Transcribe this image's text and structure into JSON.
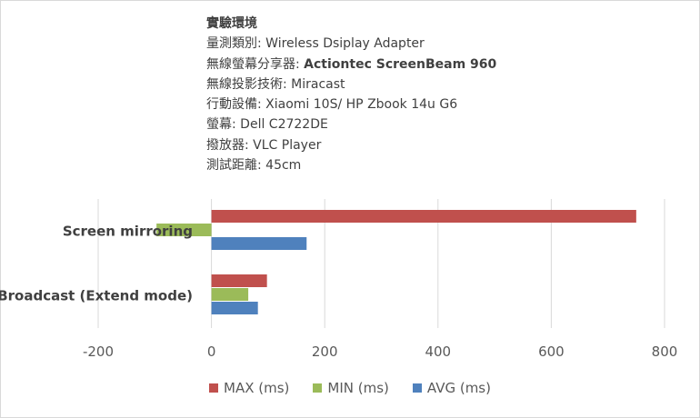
{
  "info": {
    "title": "實驗環境",
    "lines": [
      {
        "label": "量測類別: ",
        "value": "Wireless Dsiplay Adapter",
        "bold": false
      },
      {
        "label": "無線螢幕分享器: ",
        "value": "Actiontec ScreenBeam 960",
        "bold": true
      },
      {
        "label": "無線投影技術: ",
        "value": "Miracast",
        "bold": false
      },
      {
        "label": "行動設備: ",
        "value": "Xiaomi 10S/ HP Zbook 14u G6",
        "bold": false
      },
      {
        "label": "螢幕: ",
        "value": "Dell C2722DE",
        "bold": false
      },
      {
        "label": "撥放器: ",
        "value": "VLC Player",
        "bold": false
      },
      {
        "label": "測試距離: ",
        "value": "45cm",
        "bold": false
      }
    ]
  },
  "chart_data": {
    "type": "bar",
    "orientation": "horizontal",
    "categories": [
      "Screen mirroring",
      "Broadcast (Extend mode)"
    ],
    "series": [
      {
        "name": "MAX (ms)",
        "color": "#c0504d",
        "values": [
          750,
          98
        ]
      },
      {
        "name": "MIN (ms)",
        "color": "#9bbb59",
        "values": [
          -97,
          65
        ]
      },
      {
        "name": "AVG (ms)",
        "color": "#4f81bd",
        "values": [
          168,
          82
        ]
      }
    ],
    "xlim": [
      -200,
      800
    ],
    "xticks": [
      "-200",
      "0",
      "200",
      "400",
      "600",
      "800"
    ],
    "grid": true,
    "legend": "bottom"
  }
}
